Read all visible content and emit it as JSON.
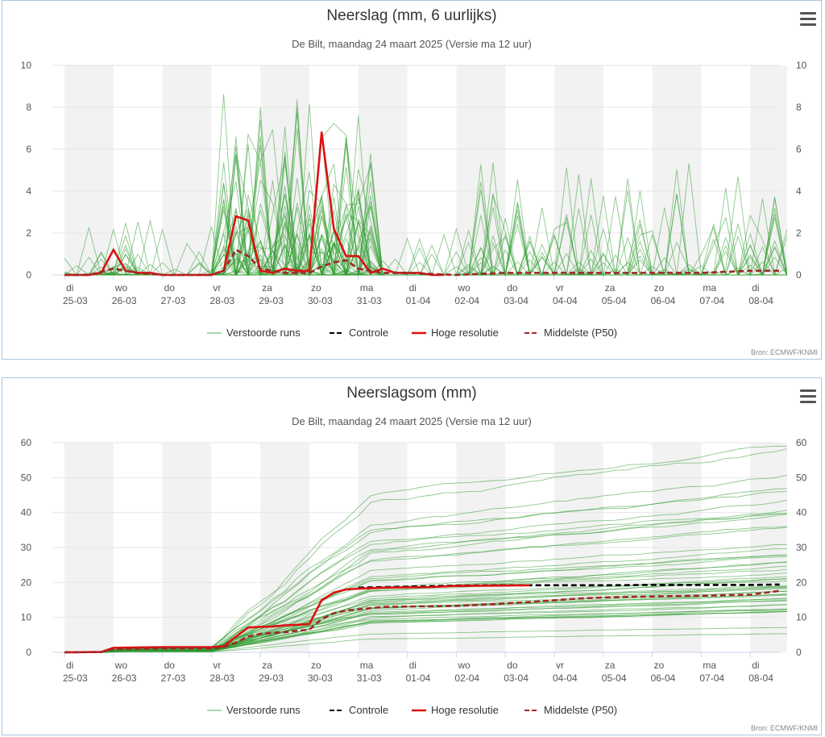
{
  "charts": [
    {
      "title": "Neerslag (mm, 6 uurlijks)",
      "subtitle": "De Bilt, maandag 24 maart 2025 (Versie ma 12 uur)",
      "source": "Bron: ECMWF/KNMI"
    },
    {
      "title": "Neerslagsom (mm)",
      "subtitle": "De Bilt, maandag 24 maart 2025 (Versie ma 12 uur)",
      "source": "Bron: ECMWF/KNMI"
    }
  ],
  "legend": [
    "Verstoorde runs",
    "Controle",
    "Hoge resolutie",
    "Middelste (P50)"
  ],
  "colors": {
    "perturbed": "#2e9a2e",
    "control": "#000000",
    "high_res": "#dd1111",
    "median": "#a02828",
    "weekend_band": "#f2f2f2",
    "grid": "#e6e6e6"
  },
  "chart_data": [
    {
      "type": "line",
      "title": "Neerslag (mm, 6 uurlijks)",
      "subtitle": "De Bilt, maandag 24 maart 2025 (Versie ma 12 uur)",
      "x_ticks": [
        {
          "day": "di",
          "date": "25-03"
        },
        {
          "day": "wo",
          "date": "26-03"
        },
        {
          "day": "do",
          "date": "27-03"
        },
        {
          "day": "vr",
          "date": "28-03"
        },
        {
          "day": "za",
          "date": "29-03"
        },
        {
          "day": "zo",
          "date": "30-03"
        },
        {
          "day": "ma",
          "date": "31-03"
        },
        {
          "day": "di",
          "date": "01-04"
        },
        {
          "day": "wo",
          "date": "02-04"
        },
        {
          "day": "do",
          "date": "03-04"
        },
        {
          "day": "vr",
          "date": "04-04"
        },
        {
          "day": "za",
          "date": "05-04"
        },
        {
          "day": "zo",
          "date": "06-04"
        },
        {
          "day": "ma",
          "date": "07-04"
        },
        {
          "day": "di",
          "date": "08-04"
        }
      ],
      "ylim": [
        0,
        10
      ],
      "y_ticks": [
        0,
        2,
        4,
        6,
        8,
        10
      ],
      "grid": true,
      "legend_position": "bottom-center",
      "series": [
        {
          "name": "Hoge resolutie",
          "style": "solid",
          "color": "#dd1111",
          "x": [
            0,
            0.25,
            0.5,
            0.75,
            1.0,
            1.25,
            1.5,
            1.75,
            2.0,
            2.25,
            2.5,
            2.75,
            3.0,
            3.25,
            3.5,
            3.75,
            4.0,
            4.25,
            4.5,
            4.75,
            5.0,
            5.25,
            5.5,
            5.75,
            6.0,
            6.25,
            6.5,
            6.75,
            7.0,
            7.25,
            7.5,
            7.75
          ],
          "values": [
            0,
            0,
            0,
            0.1,
            1.2,
            0.2,
            0.1,
            0.1,
            0,
            0,
            0,
            0,
            0,
            0.2,
            2.8,
            2.6,
            0.2,
            0.1,
            0.3,
            0.2,
            0.2,
            6.8,
            2.2,
            0.9,
            0.9,
            0.1,
            0.3,
            0.1,
            0.1,
            0.1,
            0,
            0
          ]
        },
        {
          "name": "Middelste (P50)",
          "style": "dashed",
          "color": "#a02828",
          "x": [
            0,
            0.5,
            1.0,
            1.5,
            2.0,
            2.5,
            3.0,
            3.25,
            3.5,
            3.75,
            4.0,
            4.5,
            5.0,
            5.25,
            5.5,
            5.75,
            6.0,
            6.5,
            7.0,
            8.0,
            9.0,
            10.0,
            11.0,
            12.0,
            13.0,
            14.0,
            14.6
          ],
          "values": [
            0,
            0,
            0.3,
            0.1,
            0,
            0,
            0,
            0.2,
            1.2,
            0.9,
            0.3,
            0.1,
            0.1,
            0.4,
            0.6,
            0.7,
            0.3,
            0.1,
            0.1,
            0,
            0.1,
            0.1,
            0.1,
            0.1,
            0.1,
            0.2,
            0.2
          ]
        }
      ]
    },
    {
      "type": "line",
      "title": "Neerslagsom (mm)",
      "subtitle": "De Bilt, maandag 24 maart 2025 (Versie ma 12 uur)",
      "x_ticks": [
        {
          "day": "di",
          "date": "25-03"
        },
        {
          "day": "wo",
          "date": "26-03"
        },
        {
          "day": "do",
          "date": "27-03"
        },
        {
          "day": "vr",
          "date": "28-03"
        },
        {
          "day": "za",
          "date": "29-03"
        },
        {
          "day": "zo",
          "date": "30-03"
        },
        {
          "day": "ma",
          "date": "31-03"
        },
        {
          "day": "di",
          "date": "01-04"
        },
        {
          "day": "wo",
          "date": "02-04"
        },
        {
          "day": "do",
          "date": "03-04"
        },
        {
          "day": "vr",
          "date": "04-04"
        },
        {
          "day": "za",
          "date": "05-04"
        },
        {
          "day": "zo",
          "date": "06-04"
        },
        {
          "day": "ma",
          "date": "07-04"
        },
        {
          "day": "di",
          "date": "08-04"
        }
      ],
      "ylim": [
        0,
        60
      ],
      "y_ticks": [
        0,
        10,
        20,
        30,
        40,
        50,
        60
      ],
      "grid": true,
      "legend_position": "bottom-center",
      "series": [
        {
          "name": "Controle",
          "style": "dashed",
          "color": "#000000",
          "x": [
            6.0,
            7.0,
            8.0,
            9.0,
            10.0,
            11.0,
            12.0,
            13.0,
            14.0,
            14.6
          ],
          "values": [
            18.5,
            18.8,
            19.1,
            19.2,
            19.2,
            19.2,
            19.3,
            19.3,
            19.3,
            19.4
          ]
        },
        {
          "name": "Hoge resolutie",
          "style": "solid",
          "color": "#dd1111",
          "x": [
            0,
            0.75,
            1.0,
            1.5,
            2.0,
            2.5,
            3.0,
            3.25,
            3.5,
            3.75,
            4.0,
            4.25,
            4.5,
            4.75,
            5.0,
            5.25,
            5.5,
            5.75,
            6.0,
            6.5,
            7.0,
            7.5,
            8.0,
            9.0,
            9.5
          ],
          "values": [
            0,
            0.1,
            1.3,
            1.4,
            1.5,
            1.5,
            1.5,
            1.7,
            4.5,
            7.1,
            7.3,
            7.4,
            7.7,
            7.9,
            8.1,
            14.9,
            17.1,
            18.0,
            18.2,
            18.5,
            18.6,
            18.7,
            19.0,
            19.1,
            19.2
          ]
        },
        {
          "name": "Middelste (P50)",
          "style": "dashed",
          "color": "#a02828",
          "x": [
            0,
            0.75,
            1.0,
            2.0,
            3.0,
            3.25,
            3.5,
            3.75,
            4.0,
            4.5,
            5.0,
            5.25,
            5.5,
            5.75,
            6.0,
            6.5,
            7.0,
            8.0,
            8.5,
            9.0,
            9.5,
            10.0,
            10.5,
            11.0,
            12.0,
            13.0,
            14.0,
            14.6
          ],
          "values": [
            0,
            0.1,
            0.9,
            1.1,
            1.1,
            1.5,
            2.8,
            4.5,
            5.3,
            5.8,
            6.5,
            9.5,
            11.2,
            12.0,
            12.3,
            13.0,
            13.1,
            13.3,
            13.6,
            14.0,
            14.4,
            14.9,
            15.4,
            15.7,
            16.0,
            16.2,
            16.5,
            17.6
          ]
        }
      ]
    }
  ]
}
